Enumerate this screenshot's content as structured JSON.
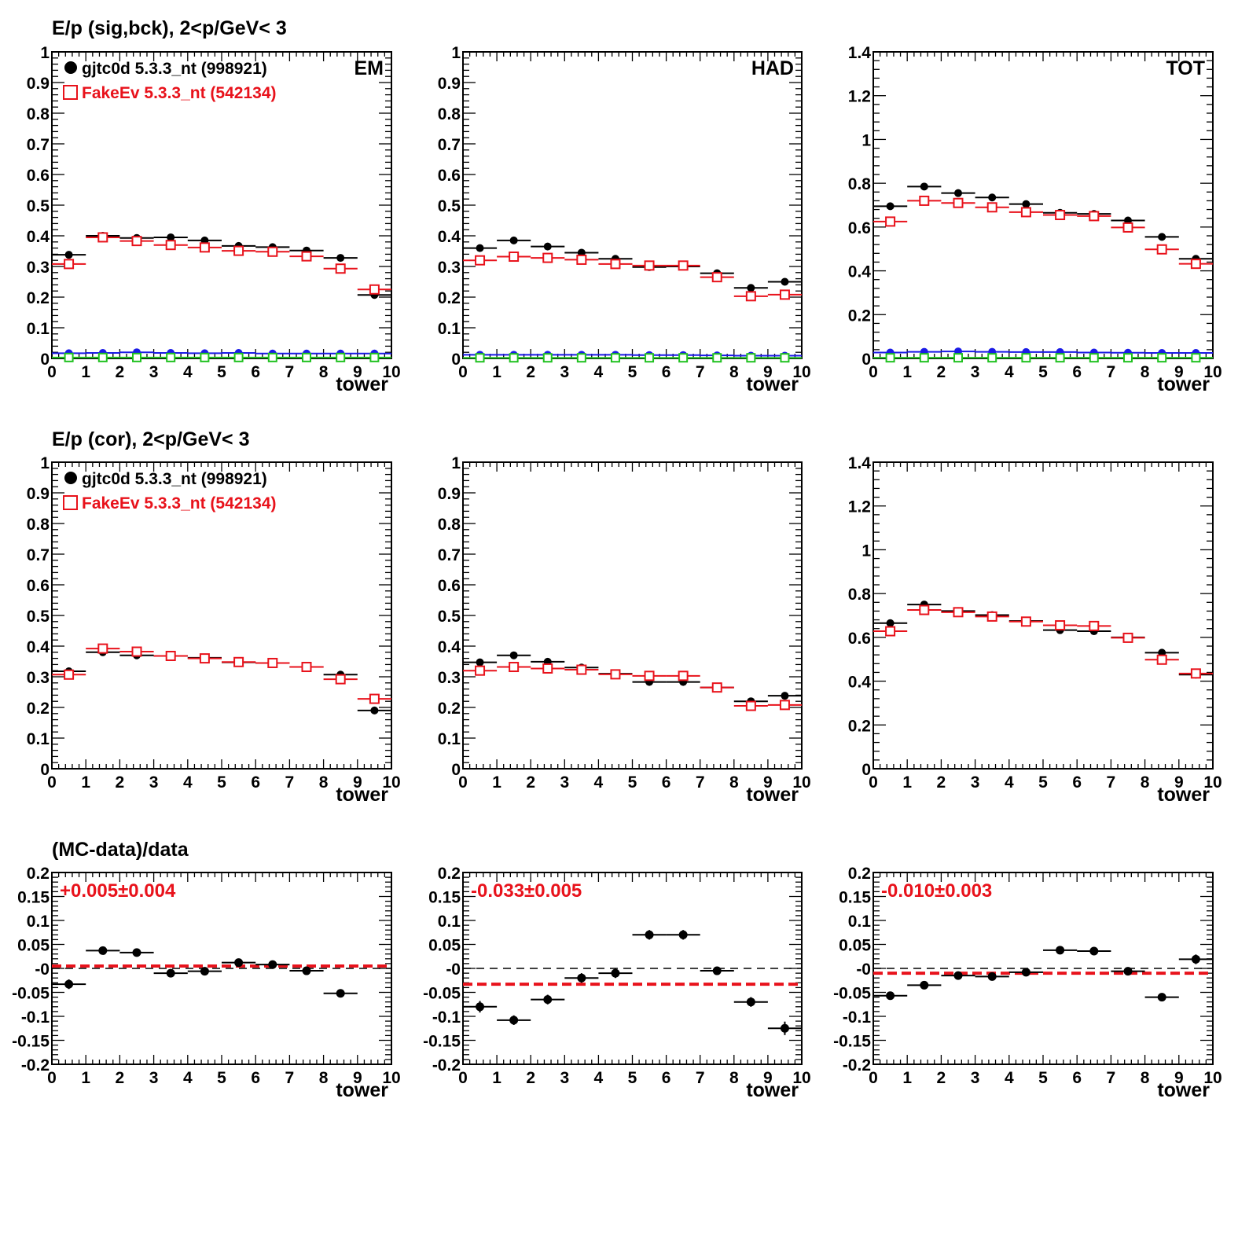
{
  "rows": [
    {
      "title": "E/p (sig,bck),  2<p/GeV< 3"
    },
    {
      "title": "E/p (cor),  2<p/GeV< 3"
    },
    {
      "title": "(MC-data)/data"
    }
  ],
  "legend": {
    "data_label": "gjtc0d 5.3.3_nt (998921)",
    "mc_label": "FakeEv 5.3.3_nt (542134)"
  },
  "colors": {
    "data": "#000000",
    "mc": "#e8121b",
    "blue": "#1a1ae6",
    "green": "#1fc11f",
    "fit": "#e8121b"
  },
  "chart_data": [
    {
      "id": "p11",
      "type": "scatter",
      "corner_label": "EM",
      "legend": true,
      "xlabel": "tower",
      "ylabel": "",
      "xlim": [
        0,
        10
      ],
      "ylim": [
        0,
        1
      ],
      "yticks": [
        "0",
        "0.1",
        "0.2",
        "0.3",
        "0.4",
        "0.5",
        "0.6",
        "0.7",
        "0.8",
        "0.9",
        "1"
      ],
      "x": [
        0.5,
        1.5,
        2.5,
        3.5,
        4.5,
        5.5,
        6.5,
        7.5,
        8.5,
        9.5
      ],
      "series": [
        {
          "style": "data",
          "values": [
            0.338,
            0.4,
            0.393,
            0.395,
            0.385,
            0.367,
            0.363,
            0.352,
            0.328,
            0.207
          ]
        },
        {
          "style": "mc",
          "values": [
            0.308,
            0.395,
            0.383,
            0.37,
            0.362,
            0.351,
            0.348,
            0.333,
            0.293,
            0.225
          ]
        },
        {
          "style": "blue",
          "values": [
            0.017,
            0.018,
            0.02,
            0.018,
            0.017,
            0.018,
            0.016,
            0.016,
            0.016,
            0.016
          ]
        },
        {
          "style": "green",
          "values": [
            0.003,
            0.003,
            0.003,
            0.003,
            0.003,
            0.003,
            0.003,
            0.003,
            0.003,
            0.003
          ]
        }
      ]
    },
    {
      "id": "p12",
      "type": "scatter",
      "corner_label": "HAD",
      "legend": false,
      "xlabel": "tower",
      "ylabel": "",
      "xlim": [
        0,
        10
      ],
      "ylim": [
        0,
        1
      ],
      "yticks": [
        "0",
        "0.1",
        "0.2",
        "0.3",
        "0.4",
        "0.5",
        "0.6",
        "0.7",
        "0.8",
        "0.9",
        "1"
      ],
      "x": [
        0.5,
        1.5,
        2.5,
        3.5,
        4.5,
        5.5,
        6.5,
        7.5,
        8.5,
        9.5
      ],
      "series": [
        {
          "style": "data",
          "values": [
            0.36,
            0.385,
            0.365,
            0.345,
            0.325,
            0.298,
            0.3,
            0.278,
            0.23,
            0.25
          ]
        },
        {
          "style": "mc",
          "values": [
            0.32,
            0.332,
            0.328,
            0.322,
            0.308,
            0.303,
            0.303,
            0.265,
            0.203,
            0.208
          ]
        },
        {
          "style": "blue",
          "values": [
            0.012,
            0.012,
            0.012,
            0.012,
            0.012,
            0.011,
            0.011,
            0.01,
            0.009,
            0.009
          ]
        },
        {
          "style": "green",
          "values": [
            0.002,
            0.002,
            0.002,
            0.002,
            0.002,
            0.002,
            0.002,
            0.002,
            0.002,
            0.002
          ]
        }
      ]
    },
    {
      "id": "p13",
      "type": "scatter",
      "corner_label": "TOT",
      "legend": false,
      "xlabel": "tower",
      "ylabel": "",
      "xlim": [
        0,
        10
      ],
      "ylim": [
        0,
        1.4
      ],
      "yticks": [
        "0",
        "0.2",
        "0.4",
        "0.6",
        "0.8",
        "1",
        "1.2",
        "1.4"
      ],
      "x": [
        0.5,
        1.5,
        2.5,
        3.5,
        4.5,
        5.5,
        6.5,
        7.5,
        8.5,
        9.5
      ],
      "series": [
        {
          "style": "data",
          "values": [
            0.695,
            0.785,
            0.755,
            0.735,
            0.705,
            0.665,
            0.66,
            0.63,
            0.555,
            0.455
          ]
        },
        {
          "style": "mc",
          "values": [
            0.625,
            0.72,
            0.71,
            0.69,
            0.668,
            0.655,
            0.65,
            0.598,
            0.498,
            0.432
          ]
        },
        {
          "style": "blue",
          "values": [
            0.027,
            0.03,
            0.032,
            0.03,
            0.029,
            0.029,
            0.027,
            0.026,
            0.025,
            0.025
          ]
        },
        {
          "style": "green",
          "values": [
            0.003,
            0.003,
            0.003,
            0.003,
            0.003,
            0.003,
            0.003,
            0.003,
            0.003,
            0.003
          ]
        }
      ]
    },
    {
      "id": "p21",
      "type": "scatter",
      "corner_label": "",
      "legend": true,
      "xlabel": "tower",
      "ylabel": "",
      "xlim": [
        0,
        10
      ],
      "ylim": [
        0,
        1
      ],
      "yticks": [
        "0",
        "0.1",
        "0.2",
        "0.3",
        "0.4",
        "0.5",
        "0.6",
        "0.7",
        "0.8",
        "0.9",
        "1"
      ],
      "x": [
        0.5,
        1.5,
        2.5,
        3.5,
        4.5,
        5.5,
        6.5,
        7.5,
        8.5,
        9.5
      ],
      "series": [
        {
          "style": "data",
          "values": [
            0.318,
            0.38,
            0.37,
            0.368,
            0.362,
            0.347,
            0.345,
            0.332,
            0.307,
            0.19
          ]
        },
        {
          "style": "mc",
          "values": [
            0.307,
            0.392,
            0.382,
            0.368,
            0.36,
            0.348,
            0.345,
            0.332,
            0.292,
            0.228
          ]
        }
      ]
    },
    {
      "id": "p22",
      "type": "scatter",
      "corner_label": "",
      "legend": false,
      "xlabel": "tower",
      "ylabel": "",
      "xlim": [
        0,
        10
      ],
      "ylim": [
        0,
        1
      ],
      "yticks": [
        "0",
        "0.1",
        "0.2",
        "0.3",
        "0.4",
        "0.5",
        "0.6",
        "0.7",
        "0.8",
        "0.9",
        "1"
      ],
      "x": [
        0.5,
        1.5,
        2.5,
        3.5,
        4.5,
        5.5,
        6.5,
        7.5,
        8.5,
        9.5
      ],
      "series": [
        {
          "style": "data",
          "values": [
            0.347,
            0.37,
            0.349,
            0.33,
            0.31,
            0.283,
            0.283,
            0.265,
            0.22,
            0.238
          ]
        },
        {
          "style": "mc",
          "values": [
            0.32,
            0.332,
            0.327,
            0.323,
            0.308,
            0.303,
            0.303,
            0.265,
            0.205,
            0.208
          ]
        }
      ]
    },
    {
      "id": "p23",
      "type": "scatter",
      "corner_label": "",
      "legend": false,
      "xlabel": "tower",
      "ylabel": "",
      "xlim": [
        0,
        10
      ],
      "ylim": [
        0,
        1.4
      ],
      "yticks": [
        "0",
        "0.2",
        "0.4",
        "0.6",
        "0.8",
        "1",
        "1.2",
        "1.4"
      ],
      "x": [
        0.5,
        1.5,
        2.5,
        3.5,
        4.5,
        5.5,
        6.5,
        7.5,
        8.5,
        9.5
      ],
      "series": [
        {
          "style": "data",
          "values": [
            0.665,
            0.75,
            0.72,
            0.702,
            0.675,
            0.633,
            0.628,
            0.6,
            0.53,
            0.43
          ]
        },
        {
          "style": "mc",
          "values": [
            0.628,
            0.725,
            0.715,
            0.695,
            0.672,
            0.655,
            0.652,
            0.598,
            0.498,
            0.435
          ]
        }
      ]
    },
    {
      "id": "p31",
      "type": "scatter",
      "corner_label": "",
      "legend": false,
      "fit_text": "+0.005±0.004",
      "fit_value": 0.005,
      "xlabel": "tower",
      "ylabel": "",
      "xlim": [
        0,
        10
      ],
      "ylim": [
        -0.2,
        0.2
      ],
      "yticks": [
        "-0.2",
        "-0.15",
        "-0.1",
        "-0.05",
        "-0",
        "0.05",
        "0.1",
        "0.15",
        "0.2"
      ],
      "x": [
        0.5,
        1.5,
        2.5,
        3.5,
        4.5,
        5.5,
        6.5,
        7.5,
        8.5
      ],
      "series": [
        {
          "style": "ratio",
          "values": [
            -0.033,
            0.037,
            0.033,
            -0.01,
            -0.006,
            0.012,
            0.008,
            -0.005,
            -0.052
          ],
          "errors": [
            0.01,
            0.008,
            0.008,
            0.006,
            0.006,
            0.006,
            0.006,
            0.006,
            0.004
          ]
        }
      ]
    },
    {
      "id": "p32",
      "type": "scatter",
      "corner_label": "",
      "legend": false,
      "fit_text": "-0.033±0.005",
      "fit_value": -0.033,
      "xlabel": "tower",
      "ylabel": "",
      "xlim": [
        0,
        10
      ],
      "ylim": [
        -0.2,
        0.2
      ],
      "yticks": [
        "-0.2",
        "-0.15",
        "-0.1",
        "-0.05",
        "-0",
        "0.05",
        "0.1",
        "0.15",
        "0.2"
      ],
      "x": [
        0.5,
        1.5,
        2.5,
        3.5,
        4.5,
        5.5,
        6.5,
        7.5,
        8.5,
        9.5
      ],
      "series": [
        {
          "style": "ratio",
          "values": [
            -0.08,
            -0.108,
            -0.065,
            -0.02,
            -0.01,
            0.07,
            0.07,
            -0.005,
            -0.07,
            -0.125
          ],
          "errors": [
            0.012,
            0.01,
            0.01,
            0.01,
            0.01,
            0.01,
            0.01,
            0.008,
            0.01,
            0.014
          ]
        }
      ]
    },
    {
      "id": "p33",
      "type": "scatter",
      "corner_label": "",
      "legend": false,
      "fit_text": "-0.010±0.003",
      "fit_value": -0.01,
      "xlabel": "tower",
      "ylabel": "",
      "xlim": [
        0,
        10
      ],
      "ylim": [
        -0.2,
        0.2
      ],
      "yticks": [
        "-0.2",
        "-0.15",
        "-0.1",
        "-0.05",
        "-0",
        "0.05",
        "0.1",
        "0.15",
        "0.2"
      ],
      "x": [
        0.5,
        1.5,
        2.5,
        3.5,
        4.5,
        5.5,
        6.5,
        7.5,
        8.5,
        9.5
      ],
      "series": [
        {
          "style": "ratio",
          "values": [
            -0.057,
            -0.035,
            -0.015,
            -0.017,
            -0.008,
            0.038,
            0.036,
            -0.006,
            -0.06,
            0.019
          ],
          "errors": [
            0.007,
            0.006,
            0.005,
            0.005,
            0.005,
            0.005,
            0.005,
            0.004,
            0.004,
            0.01
          ]
        }
      ]
    }
  ]
}
